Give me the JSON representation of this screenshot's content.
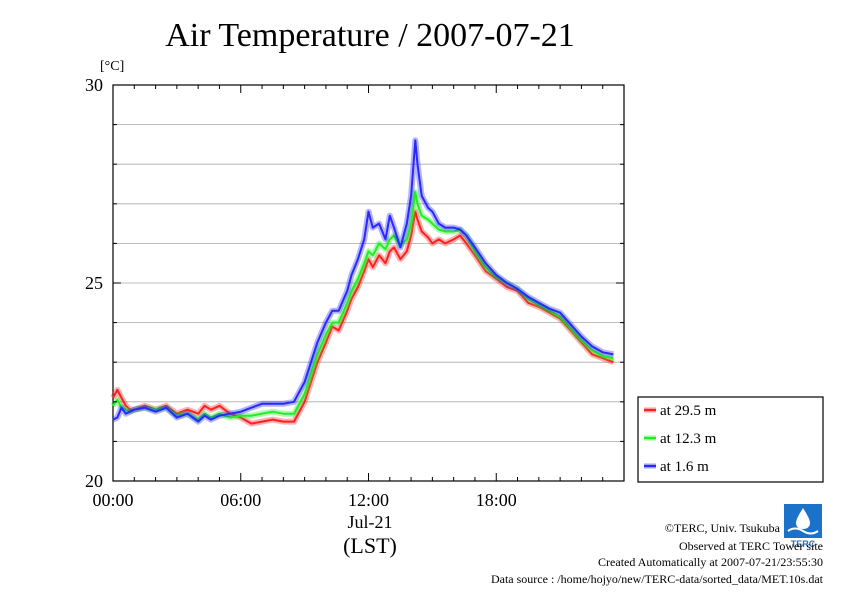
{
  "chart_data": {
    "type": "line",
    "title": "Air Temperature / 2007-07-21",
    "ylabel": "[°C]",
    "ylim": [
      20,
      30
    ],
    "yticks": [
      "20",
      "25",
      "30"
    ],
    "xlim": [
      0,
      24
    ],
    "xticks": [
      {
        "value": 0,
        "label": "00:00"
      },
      {
        "value": 6,
        "label": "06:00"
      },
      {
        "value": 12,
        "label": "12:00"
      },
      {
        "value": 18,
        "label": "18:00"
      }
    ],
    "xdate_label": "Jul-21",
    "xunit_label": "(LST)",
    "grid": true,
    "legend_position": "right",
    "series": [
      {
        "name": "at 29.5 m",
        "color": "#ff2020",
        "x": [
          0,
          0.2,
          0.4,
          0.6,
          0.8,
          1,
          1.5,
          2,
          2.5,
          3,
          3.5,
          4,
          4.3,
          4.6,
          5,
          5.5,
          6,
          6.5,
          7,
          7.5,
          8,
          8.5,
          9,
          9.3,
          9.6,
          10,
          10.3,
          10.6,
          11,
          11.2,
          11.5,
          11.8,
          12,
          12.2,
          12.5,
          12.8,
          13,
          13.2,
          13.5,
          13.8,
          14,
          14.2,
          14.3,
          14.5,
          14.8,
          15,
          15.3,
          15.6,
          16,
          16.3,
          16.6,
          17,
          17.5,
          18,
          18.5,
          19,
          19.5,
          20,
          20.5,
          21,
          21.5,
          22,
          22.5,
          23,
          23.5
        ],
        "values": [
          22.1,
          22.3,
          22.1,
          21.9,
          21.8,
          21.8,
          21.9,
          21.8,
          21.9,
          21.7,
          21.8,
          21.7,
          21.9,
          21.8,
          21.9,
          21.7,
          21.6,
          21.45,
          21.5,
          21.55,
          21.5,
          21.5,
          22,
          22.5,
          23,
          23.5,
          23.9,
          23.8,
          24.3,
          24.6,
          24.9,
          25.3,
          25.6,
          25.4,
          25.7,
          25.5,
          25.8,
          25.9,
          25.6,
          25.8,
          26.2,
          26.8,
          26.6,
          26.3,
          26.15,
          26,
          26.1,
          26,
          26.1,
          26.2,
          26,
          25.7,
          25.3,
          25.1,
          24.9,
          24.8,
          24.5,
          24.4,
          24.25,
          24.1,
          23.8,
          23.5,
          23.2,
          23.1,
          23.0
        ]
      },
      {
        "name": "at 12.3 m",
        "color": "#20ee20",
        "x": [
          0,
          0.2,
          0.4,
          0.6,
          0.8,
          1,
          1.5,
          2,
          2.5,
          3,
          3.5,
          4,
          4.3,
          4.6,
          5,
          5.5,
          6,
          6.5,
          7,
          7.5,
          8,
          8.5,
          9,
          9.3,
          9.6,
          10,
          10.3,
          10.6,
          11,
          11.2,
          11.5,
          11.8,
          12,
          12.2,
          12.5,
          12.8,
          13,
          13.2,
          13.5,
          13.8,
          14,
          14.2,
          14.3,
          14.5,
          14.8,
          15,
          15.3,
          15.6,
          16,
          16.3,
          16.6,
          17,
          17.5,
          18,
          18.5,
          19,
          19.5,
          20,
          20.5,
          21,
          21.5,
          22,
          22.5,
          23,
          23.5
        ],
        "values": [
          21.9,
          22.05,
          21.85,
          21.8,
          21.75,
          21.8,
          21.85,
          21.8,
          21.85,
          21.65,
          21.7,
          21.55,
          21.7,
          21.6,
          21.7,
          21.6,
          21.65,
          21.65,
          21.7,
          21.75,
          21.7,
          21.7,
          22.2,
          22.7,
          23.2,
          23.7,
          24.0,
          24.0,
          24.5,
          24.8,
          25.1,
          25.5,
          25.8,
          25.7,
          26.0,
          25.85,
          26.1,
          26.2,
          25.95,
          26.1,
          26.5,
          27.3,
          27.0,
          26.7,
          26.6,
          26.5,
          26.35,
          26.3,
          26.3,
          26.35,
          26.2,
          25.8,
          25.4,
          25.15,
          25.0,
          24.85,
          24.6,
          24.45,
          24.3,
          24.15,
          23.85,
          23.55,
          23.3,
          23.15,
          23.1
        ]
      },
      {
        "name": "at 1.6 m",
        "color": "#2828ff",
        "x": [
          0,
          0.2,
          0.4,
          0.6,
          0.8,
          1,
          1.5,
          2,
          2.5,
          3,
          3.5,
          4,
          4.3,
          4.6,
          5,
          5.5,
          6,
          6.5,
          7,
          7.5,
          8,
          8.5,
          9,
          9.3,
          9.6,
          10,
          10.3,
          10.6,
          11,
          11.2,
          11.5,
          11.8,
          12,
          12.2,
          12.5,
          12.8,
          13,
          13.2,
          13.5,
          13.8,
          14,
          14.2,
          14.3,
          14.5,
          14.8,
          15,
          15.3,
          15.6,
          16,
          16.3,
          16.6,
          17,
          17.5,
          18,
          18.5,
          19,
          19.5,
          20,
          20.5,
          21,
          21.5,
          22,
          22.5,
          23,
          23.5
        ],
        "values": [
          21.55,
          21.6,
          21.85,
          21.7,
          21.75,
          21.8,
          21.85,
          21.75,
          21.85,
          21.6,
          21.7,
          21.5,
          21.65,
          21.55,
          21.65,
          21.7,
          21.75,
          21.85,
          21.95,
          21.95,
          21.95,
          22.0,
          22.5,
          23.0,
          23.5,
          24.0,
          24.3,
          24.3,
          24.8,
          25.2,
          25.6,
          26.1,
          26.8,
          26.4,
          26.5,
          26.1,
          26.7,
          26.4,
          25.9,
          26.5,
          27.2,
          28.6,
          28.0,
          27.2,
          26.9,
          26.8,
          26.5,
          26.4,
          26.4,
          26.35,
          26.2,
          25.9,
          25.5,
          25.2,
          25.0,
          24.85,
          24.65,
          24.5,
          24.35,
          24.25,
          23.95,
          23.65,
          23.4,
          23.25,
          23.2
        ]
      }
    ]
  },
  "credits": {
    "copyright": "©TERC, Univ. Tsukuba",
    "observed": "Observed at TERC Tower site",
    "created": "Created Automatically at 2007-07-21/23:55:30",
    "source": "Data source : /home/hojyo/new/TERC-data/sorted_data/MET.10s.dat",
    "logo_text": "TERC",
    "logo_color": "#1a73c8"
  }
}
